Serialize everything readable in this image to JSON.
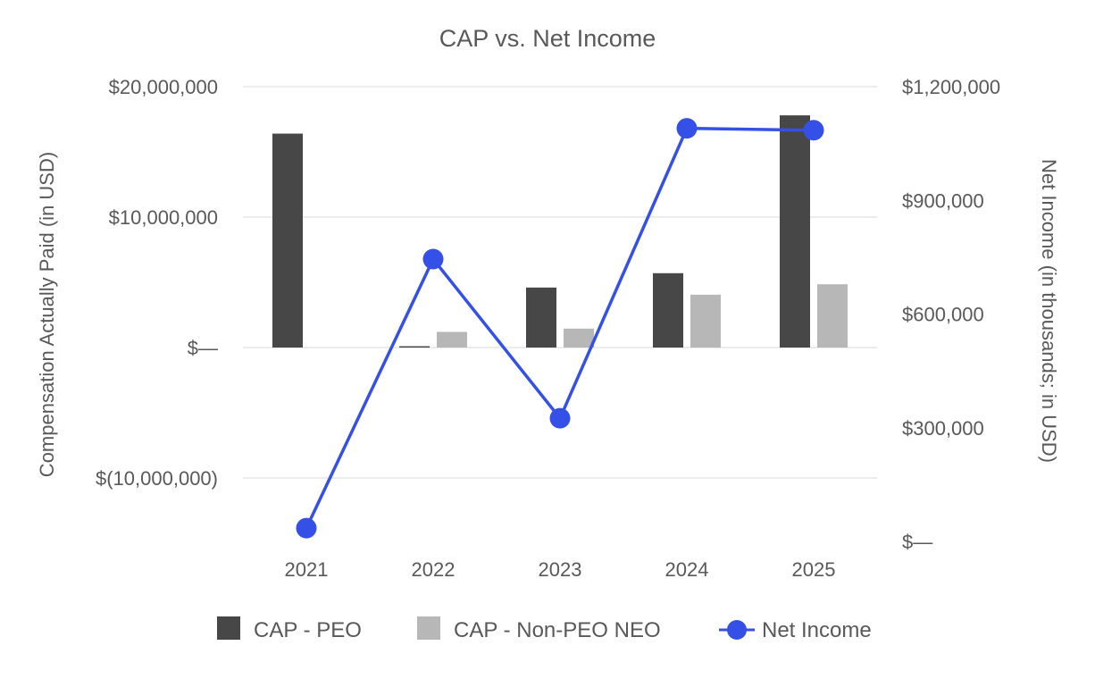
{
  "chart_data": {
    "type": "bar",
    "title": "CAP vs. Net Income",
    "categories": [
      "2021",
      "2022",
      "2023",
      "2024",
      "2025"
    ],
    "series": [
      {
        "name": "CAP - PEO",
        "type": "bar",
        "axis": "left",
        "color": "#474747",
        "values": [
          16400000,
          100000,
          4600000,
          5700000,
          17800000
        ]
      },
      {
        "name": "CAP - Non-PEO NEO",
        "type": "bar",
        "axis": "left",
        "color": "#b7b7b7",
        "values": [
          null,
          1200000,
          1450000,
          4050000,
          4850000
        ]
      },
      {
        "name": "Net Income",
        "type": "line",
        "axis": "right",
        "color": "#3550e6",
        "values": [
          35000,
          745000,
          325000,
          1090000,
          1085000
        ]
      }
    ],
    "left_axis": {
      "label": "Compensation Actually Paid (in USD)",
      "ylim": [
        -15000000,
        20000000
      ],
      "ticks": [
        {
          "value": 20000000,
          "label": "$20,000,000"
        },
        {
          "value": 10000000,
          "label": "$10,000,000"
        },
        {
          "value": 0,
          "label": "$—"
        },
        {
          "value": -10000000,
          "label": "$(10,000,000)"
        }
      ]
    },
    "right_axis": {
      "label": "Net Income (in thousands; in USD)",
      "ylim": [
        0,
        1200000
      ],
      "ticks": [
        {
          "value": 1200000,
          "label": "$1,200,000"
        },
        {
          "value": 900000,
          "label": "$900,000"
        },
        {
          "value": 600000,
          "label": "$600,000"
        },
        {
          "value": 300000,
          "label": "$300,000"
        },
        {
          "value": 0,
          "label": "$—"
        }
      ]
    },
    "grid": true,
    "legend_position": "bottom"
  }
}
